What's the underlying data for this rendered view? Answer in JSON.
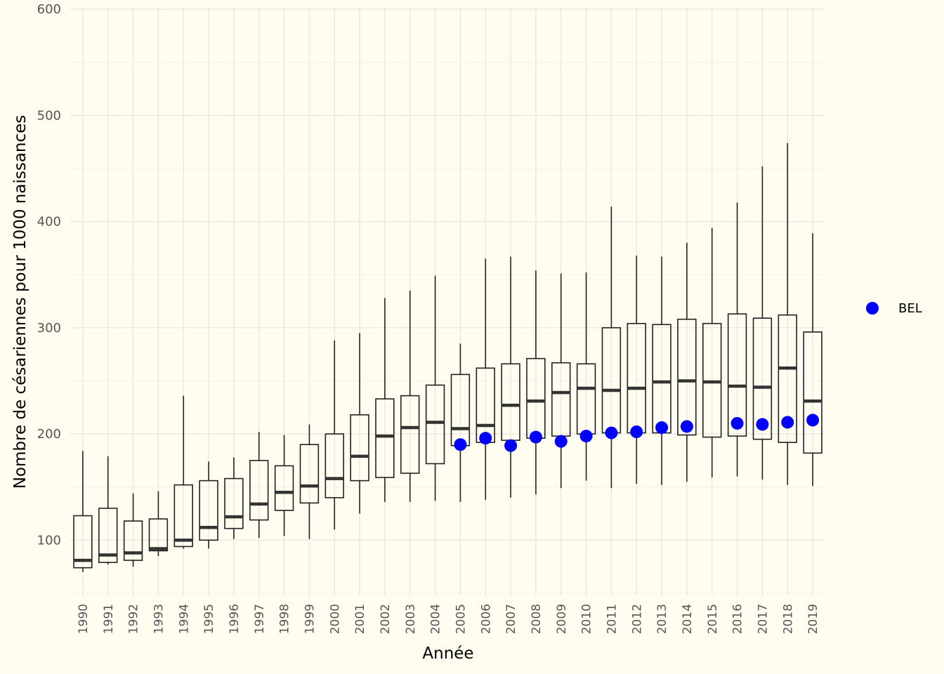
{
  "chart_data": {
    "type": "box",
    "xlabel": "Année",
    "ylabel": "Nombre de césariennes pour 1000 naissances",
    "ylim": [
      48,
      602
    ],
    "y_ticks": [
      100,
      200,
      300,
      400,
      500,
      600
    ],
    "grid": true,
    "legend_position": "right",
    "box_color": "#222222",
    "point_color": "#0000ff",
    "years": [
      "1990",
      "1991",
      "1992",
      "1993",
      "1994",
      "1995",
      "1996",
      "1997",
      "1998",
      "1999",
      "2000",
      "2001",
      "2002",
      "2003",
      "2004",
      "2005",
      "2006",
      "2007",
      "2008",
      "2009",
      "2010",
      "2011",
      "2012",
      "2013",
      "2014",
      "2015",
      "2016",
      "2017",
      "2018",
      "2019"
    ],
    "boxes": [
      {
        "year": "1990",
        "min": 70,
        "q1": 74,
        "median": 81,
        "q3": 123,
        "max": 184
      },
      {
        "year": "1991",
        "min": 77,
        "q1": 79,
        "median": 86,
        "q3": 130,
        "max": 179
      },
      {
        "year": "1992",
        "min": 75,
        "q1": 81,
        "median": 88,
        "q3": 118,
        "max": 144
      },
      {
        "year": "1993",
        "min": 85,
        "q1": 90,
        "median": 92,
        "q3": 120,
        "max": 146
      },
      {
        "year": "1994",
        "min": 92,
        "q1": 94,
        "median": 100,
        "q3": 152,
        "max": 236
      },
      {
        "year": "1995",
        "min": 92,
        "q1": 100,
        "median": 112,
        "q3": 156,
        "max": 174
      },
      {
        "year": "1996",
        "min": 101,
        "q1": 111,
        "median": 122,
        "q3": 158,
        "max": 178
      },
      {
        "year": "1997",
        "min": 102,
        "q1": 119,
        "median": 134,
        "q3": 175,
        "max": 202
      },
      {
        "year": "1998",
        "min": 104,
        "q1": 128,
        "median": 145,
        "q3": 170,
        "max": 199
      },
      {
        "year": "1999",
        "min": 101,
        "q1": 135,
        "median": 151,
        "q3": 190,
        "max": 209
      },
      {
        "year": "2000",
        "min": 110,
        "q1": 140,
        "median": 158,
        "q3": 200,
        "max": 288
      },
      {
        "year": "2001",
        "min": 125,
        "q1": 156,
        "median": 179,
        "q3": 218,
        "max": 295
      },
      {
        "year": "2002",
        "min": 136,
        "q1": 159,
        "median": 198,
        "q3": 233,
        "max": 328
      },
      {
        "year": "2003",
        "min": 136,
        "q1": 163,
        "median": 206,
        "q3": 236,
        "max": 335
      },
      {
        "year": "2004",
        "min": 137,
        "q1": 172,
        "median": 211,
        "q3": 246,
        "max": 349
      },
      {
        "year": "2005",
        "min": 136,
        "q1": 189,
        "median": 205,
        "q3": 256,
        "max": 285
      },
      {
        "year": "2006",
        "min": 138,
        "q1": 192,
        "median": 208,
        "q3": 262,
        "max": 365
      },
      {
        "year": "2007",
        "min": 140,
        "q1": 194,
        "median": 227,
        "q3": 266,
        "max": 367
      },
      {
        "year": "2008",
        "min": 143,
        "q1": 196,
        "median": 231,
        "q3": 271,
        "max": 354
      },
      {
        "year": "2009",
        "min": 149,
        "q1": 198,
        "median": 239,
        "q3": 267,
        "max": 351
      },
      {
        "year": "2010",
        "min": 156,
        "q1": 200,
        "median": 243,
        "q3": 266,
        "max": 352
      },
      {
        "year": "2011",
        "min": 149,
        "q1": 201,
        "median": 241,
        "q3": 300,
        "max": 414
      },
      {
        "year": "2012",
        "min": 153,
        "q1": 201,
        "median": 243,
        "q3": 304,
        "max": 368
      },
      {
        "year": "2013",
        "min": 152,
        "q1": 201,
        "median": 249,
        "q3": 303,
        "max": 367
      },
      {
        "year": "2014",
        "min": 155,
        "q1": 199,
        "median": 250,
        "q3": 308,
        "max": 380
      },
      {
        "year": "2015",
        "min": 159,
        "q1": 197,
        "median": 249,
        "q3": 304,
        "max": 394
      },
      {
        "year": "2016",
        "min": 160,
        "q1": 198,
        "median": 245,
        "q3": 313,
        "max": 418
      },
      {
        "year": "2017",
        "min": 157,
        "q1": 195,
        "median": 244,
        "q3": 309,
        "max": 452
      },
      {
        "year": "2018",
        "min": 152,
        "q1": 192,
        "median": 262,
        "q3": 312,
        "max": 474
      },
      {
        "year": "2019",
        "min": 151,
        "q1": 182,
        "median": 231,
        "q3": 296,
        "max": 389
      }
    ],
    "series": [
      {
        "name": "BEL",
        "points": [
          {
            "year": "2005",
            "value": 190
          },
          {
            "year": "2006",
            "value": 196
          },
          {
            "year": "2007",
            "value": 189
          },
          {
            "year": "2008",
            "value": 197
          },
          {
            "year": "2009",
            "value": 193
          },
          {
            "year": "2010",
            "value": 198
          },
          {
            "year": "2011",
            "value": 201
          },
          {
            "year": "2012",
            "value": 202
          },
          {
            "year": "2013",
            "value": 206
          },
          {
            "year": "2014",
            "value": 207
          },
          {
            "year": "2016",
            "value": 210
          },
          {
            "year": "2017",
            "value": 209
          },
          {
            "year": "2018",
            "value": 211
          },
          {
            "year": "2019",
            "value": 213
          }
        ]
      }
    ]
  }
}
